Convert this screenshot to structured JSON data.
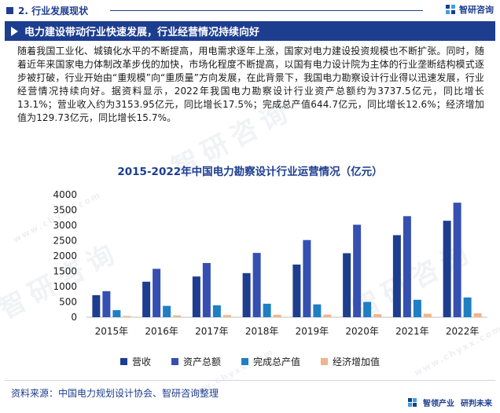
{
  "section": {
    "label": "2. 行业发展现状"
  },
  "brand": {
    "name": "智研咨询"
  },
  "headline": {
    "text": "电力建设带动行业快速发展，行业经营情况持续向好"
  },
  "body": {
    "paragraph": "随着我国工业化、城镇化水平的不断提高，用电需求逐年上涨，国家对电力建设投资规模也不断扩张。同时，随着近年来国家电力体制改革步伐的加快，市场化程度不断提高，以国有电力设计院为主体的行业垄断结构模式逐步被打破，行业开始由“重规模”向“重质量”方向发展，在此背景下，我国电力勘察设计行业得以迅速发展，行业经营情况持续向好。据资料显示，2022年我国电力勘察设计行业资产总额约为3737.5亿元，同比增长13.1%；营业收入约为3153.95亿元，同比增长17.5%；完成总产值644.7亿元，同比增长12.6%；经济增加值为129.73亿元，同比增长15.7%。"
  },
  "watermark": {
    "big": "智研咨询",
    "small": "www.chyxx.com"
  },
  "chart_data": {
    "type": "bar",
    "title": "2015-2022年中国电力勘察设计行业运营情况（亿元）",
    "categories": [
      "2015年",
      "2016年",
      "2017年",
      "2018年",
      "2019年",
      "2020年",
      "2021年",
      "2022年"
    ],
    "ylim": [
      0,
      4000
    ],
    "yticks": [
      "0",
      "500",
      "1000",
      "1500",
      "2000",
      "2500",
      "3000",
      "3500",
      "4000"
    ],
    "ytick_values": [
      0,
      500,
      1000,
      1500,
      2000,
      2500,
      3000,
      3500,
      4000
    ],
    "grid": false,
    "legend_position": "bottom",
    "series": [
      {
        "name": "营收",
        "color": "#1d3d8f",
        "values": [
          720,
          1160,
          1330,
          1440,
          1720,
          2090,
          2680,
          3150
        ]
      },
      {
        "name": "资产总额",
        "color": "#3550b0",
        "values": [
          850,
          1580,
          1770,
          2100,
          2520,
          3020,
          3300,
          3740
        ]
      },
      {
        "name": "完成总产值",
        "color": "#1f7fc2",
        "values": [
          230,
          370,
          390,
          440,
          420,
          500,
          570,
          645
        ]
      },
      {
        "name": "经济增加值",
        "color": "#f2b48c",
        "values": [
          40,
          60,
          70,
          80,
          85,
          100,
          115,
          130
        ]
      }
    ]
  },
  "source": {
    "text": "资料来源：中国电力规划设计协会、智研咨询整理"
  },
  "footer": {
    "slogan_left": "智领产业",
    "slogan_right": "研判未来"
  }
}
